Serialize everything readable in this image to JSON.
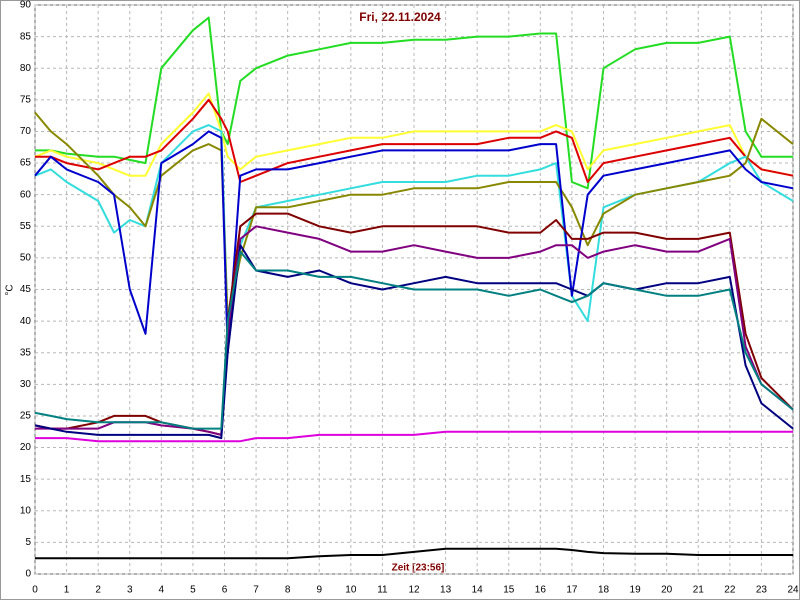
{
  "chart_data": {
    "type": "line",
    "title": "Fri, 22.11.2024",
    "xlabel": "Zeit [23:56]",
    "ylabel": "°C",
    "x": [
      0,
      0.5,
      1,
      2,
      2.5,
      3,
      3.5,
      4,
      5,
      5.5,
      5.9,
      6.1,
      6.5,
      7,
      8,
      9,
      10,
      11,
      12,
      13,
      14,
      15,
      16,
      16.5,
      17,
      17.5,
      18,
      19,
      20,
      21,
      22,
      22.5,
      23,
      24
    ],
    "xlim": [
      0,
      24
    ],
    "xticks": [
      0,
      1,
      2,
      3,
      4,
      5,
      6,
      7,
      8,
      9,
      10,
      11,
      12,
      13,
      14,
      15,
      16,
      17,
      18,
      19,
      20,
      21,
      22,
      23,
      24
    ],
    "ylim": [
      0,
      90
    ],
    "yticks": [
      0,
      5,
      10,
      15,
      20,
      25,
      30,
      35,
      40,
      45,
      50,
      55,
      60,
      65,
      70,
      75,
      80,
      85,
      90
    ],
    "grid": true,
    "series": [
      {
        "color": "#22dd22",
        "values": [
          67,
          67,
          66.5,
          66,
          66,
          65.5,
          65,
          80,
          86,
          88,
          70,
          68,
          78,
          80,
          82,
          83,
          84,
          84,
          84.5,
          84.5,
          85,
          85,
          85.5,
          85.5,
          62,
          61,
          80,
          83,
          84,
          84,
          85,
          70,
          66,
          66
        ]
      },
      {
        "color": "#ffff33",
        "values": [
          66,
          67,
          66,
          65,
          64,
          63,
          63,
          68,
          73,
          76,
          70,
          66,
          64,
          66,
          67,
          68,
          69,
          69,
          70,
          70,
          70,
          70,
          70,
          71,
          70,
          64,
          67,
          68,
          69,
          70,
          71,
          66,
          64,
          63
        ]
      },
      {
        "color": "#dd0000",
        "values": [
          66,
          66,
          65,
          64,
          65,
          66,
          66,
          67,
          72,
          75,
          72,
          70,
          62,
          63,
          65,
          66,
          67,
          68,
          68,
          68,
          68,
          69,
          69,
          70,
          69,
          62,
          65,
          66,
          67,
          68,
          69,
          66,
          64,
          63
        ]
      },
      {
        "color": "#33dddd",
        "values": [
          63,
          64,
          62,
          59,
          54,
          56,
          55,
          65,
          70,
          71,
          70,
          40,
          52,
          58,
          59,
          60,
          61,
          62,
          62,
          62,
          63,
          63,
          64,
          65,
          44,
          40,
          58,
          60,
          61,
          62,
          65,
          66,
          62,
          59
        ]
      },
      {
        "color": "#888800",
        "values": [
          73,
          70,
          68,
          63,
          60,
          58,
          55,
          63,
          67,
          68,
          67,
          40,
          50,
          58,
          58,
          59,
          60,
          60,
          61,
          61,
          61,
          62,
          62,
          62,
          58,
          52,
          57,
          60,
          61,
          62,
          63,
          65,
          72,
          68
        ]
      },
      {
        "color": "#0000cc",
        "values": [
          63,
          66,
          64,
          62,
          60,
          45,
          38,
          65,
          68,
          70,
          69,
          35,
          63,
          64,
          64,
          65,
          66,
          67,
          67,
          67,
          67,
          67,
          68,
          68,
          44,
          60,
          63,
          64,
          65,
          66,
          67,
          64,
          62,
          61
        ]
      },
      {
        "color": "#800000",
        "values": [
          23.5,
          23,
          23,
          24,
          25,
          25,
          25,
          24,
          23,
          22.5,
          22,
          40,
          55,
          57,
          57,
          55,
          54,
          55,
          55,
          55,
          55,
          54,
          54,
          56,
          53,
          53,
          54,
          54,
          53,
          53,
          54,
          38,
          31,
          26
        ]
      },
      {
        "color": "#800080",
        "values": [
          23,
          23,
          23,
          23,
          24,
          24,
          24,
          23.5,
          23,
          22.5,
          22,
          38,
          53,
          55,
          54,
          53,
          51,
          51,
          52,
          51,
          50,
          50,
          51,
          52,
          52,
          50,
          51,
          52,
          51,
          51,
          53,
          36,
          30,
          26
        ]
      },
      {
        "color": "#000080",
        "values": [
          23.5,
          23,
          22.5,
          22,
          22,
          22,
          22,
          22,
          22,
          22,
          21.5,
          35,
          52,
          48,
          47,
          48,
          46,
          45,
          46,
          47,
          46,
          46,
          46,
          46,
          45,
          44,
          46,
          45,
          46,
          46,
          47,
          33,
          27,
          23
        ]
      },
      {
        "color": "#008080",
        "values": [
          25.5,
          25,
          24.5,
          24,
          24,
          24,
          24,
          24,
          23,
          23,
          23,
          40,
          51,
          48,
          48,
          47,
          47,
          46,
          45,
          45,
          45,
          44,
          45,
          44,
          43,
          44,
          46,
          45,
          44,
          44,
          45,
          35,
          30,
          26
        ]
      },
      {
        "color": "#dd00dd",
        "values": [
          21.5,
          21.5,
          21.5,
          21,
          21,
          21,
          21,
          21,
          21,
          21,
          21,
          21,
          21,
          21.5,
          21.5,
          22,
          22,
          22,
          22,
          22.5,
          22.5,
          22.5,
          22.5,
          22.5,
          22.5,
          22.5,
          22.5,
          22.5,
          22.5,
          22.5,
          22.5,
          22.5,
          22.5,
          22.5
        ]
      },
      {
        "color": "#000000",
        "values": [
          2.5,
          2.5,
          2.5,
          2.5,
          2.5,
          2.5,
          2.5,
          2.5,
          2.5,
          2.5,
          2.5,
          2.5,
          2.5,
          2.5,
          2.5,
          2.8,
          3,
          3,
          3.5,
          4,
          4,
          4,
          4,
          4,
          3.8,
          3.5,
          3.3,
          3.2,
          3.2,
          3,
          3,
          3,
          3,
          3
        ]
      }
    ]
  }
}
